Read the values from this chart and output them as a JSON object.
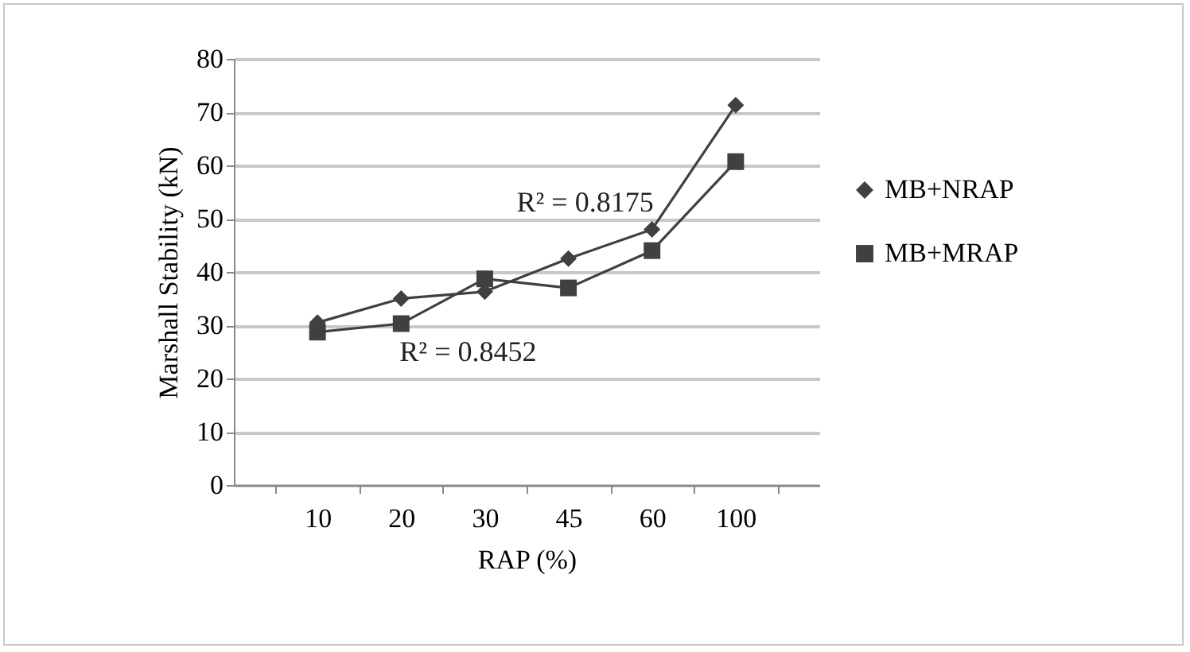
{
  "chart_data": {
    "type": "line",
    "xlabel": "RAP (%)",
    "ylabel": "Marshall Stability (kN)",
    "categories": [
      "10",
      "20",
      "30",
      "45",
      "60",
      "100"
    ],
    "series": [
      {
        "name": "MB+NRAP",
        "color": "#404040",
        "marker": "diamond",
        "values": [
          30.5,
          35,
          36.3,
          42.5,
          48,
          71.3
        ]
      },
      {
        "name": "MB+MRAP",
        "color": "#404040",
        "marker": "square",
        "values": [
          28.7,
          30.3,
          38.7,
          37,
          44,
          60.7
        ]
      }
    ],
    "ylim": [
      0,
      80
    ],
    "yticks": [
      0,
      10,
      20,
      30,
      40,
      50,
      60,
      70,
      80
    ],
    "grid": "y",
    "legend": "right",
    "annotations": [
      "R² = 0.8175",
      "R² = 0.8452"
    ]
  }
}
